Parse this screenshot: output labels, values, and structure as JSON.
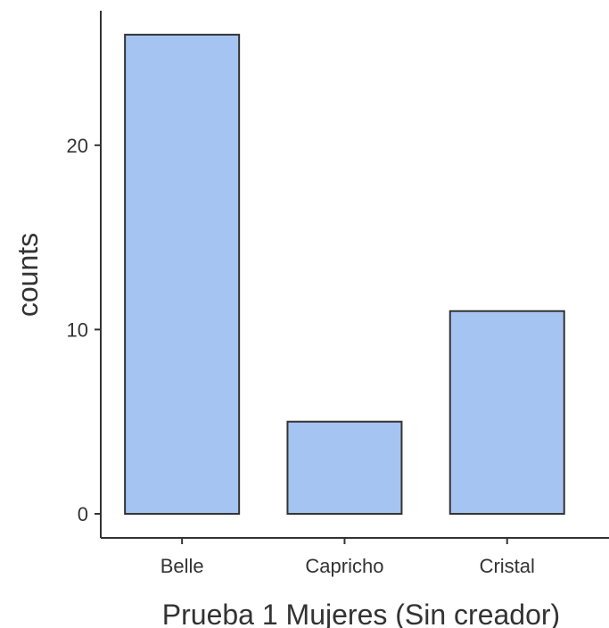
{
  "chart_data": {
    "type": "bar",
    "categories": [
      "Belle",
      "Capricho",
      "Cristal"
    ],
    "values": [
      26,
      5,
      11
    ],
    "xlabel": "Prueba 1 Mujeres (Sin creador)",
    "ylabel": "counts",
    "ylim": [
      0,
      27.3
    ],
    "yticks": [
      0,
      10,
      20
    ],
    "grid": false,
    "legend": "none",
    "colors": {
      "bar_fill": "#a6c4f2",
      "bar_stroke": "#333333",
      "axis": "#333333",
      "text": "#333333"
    }
  }
}
